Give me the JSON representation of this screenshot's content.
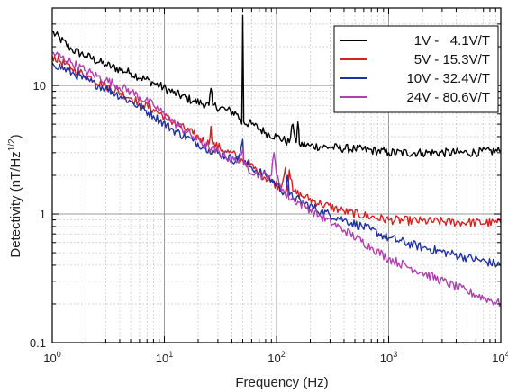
{
  "chart_data": {
    "type": "line",
    "xlabel": "Frequency (Hz)",
    "ylabel_main": "Detectivity (nT/Hz",
    "ylabel_sup": "1/2",
    "ylabel_end": ")",
    "xscale": "log",
    "yscale": "log",
    "xlim": [
      1,
      10000
    ],
    "ylim": [
      0.1,
      40
    ],
    "x_ticks": [
      {
        "value": 1,
        "base": "10",
        "exp": "0"
      },
      {
        "value": 10,
        "base": "10",
        "exp": "1"
      },
      {
        "value": 100,
        "base": "10",
        "exp": "2"
      },
      {
        "value": 1000,
        "base": "10",
        "exp": "3"
      },
      {
        "value": 10000,
        "base": "10",
        "exp": "4"
      }
    ],
    "y_ticks": [
      {
        "value": 0.1,
        "label": "0.1"
      },
      {
        "value": 1,
        "label": "1"
      },
      {
        "value": 10,
        "label": "10"
      }
    ],
    "grid": true,
    "legend_position": "top-right",
    "series": [
      {
        "name": "1V -   4.1V/T",
        "color": "#000000",
        "points": [
          [
            1,
            26
          ],
          [
            1.5,
            19
          ],
          [
            2,
            17
          ],
          [
            3,
            14.5
          ],
          [
            5,
            12.5
          ],
          [
            8,
            10.5
          ],
          [
            12,
            8.8
          ],
          [
            18,
            7.6
          ],
          [
            25,
            7.0
          ],
          [
            26,
            9.5
          ],
          [
            27,
            7.0
          ],
          [
            35,
            6.5
          ],
          [
            45,
            6.0
          ],
          [
            49,
            5.0
          ],
          [
            50,
            35
          ],
          [
            51,
            5.2
          ],
          [
            60,
            5.0
          ],
          [
            80,
            4.3
          ],
          [
            100,
            4.0
          ],
          [
            130,
            3.6
          ],
          [
            140,
            5.0
          ],
          [
            150,
            3.6
          ],
          [
            155,
            5.2
          ],
          [
            160,
            3.5
          ],
          [
            200,
            3.4
          ],
          [
            300,
            3.3
          ],
          [
            500,
            3.2
          ],
          [
            800,
            3.1
          ],
          [
            1000,
            3.0
          ],
          [
            2000,
            3.0
          ],
          [
            5000,
            3.0
          ],
          [
            10000,
            3.1
          ]
        ]
      },
      {
        "name": "5V - 15.3V/T",
        "color": "#d42020",
        "points": [
          [
            1,
            17
          ],
          [
            1.5,
            13.5
          ],
          [
            2,
            12
          ],
          [
            3,
            10
          ],
          [
            5,
            8
          ],
          [
            8,
            6.5
          ],
          [
            12,
            5.2
          ],
          [
            18,
            4.2
          ],
          [
            25,
            3.5
          ],
          [
            26,
            4.8
          ],
          [
            27,
            3.5
          ],
          [
            35,
            3.1
          ],
          [
            45,
            2.8
          ],
          [
            50,
            2.6
          ],
          [
            55,
            2.5
          ],
          [
            70,
            2.1
          ],
          [
            90,
            1.8
          ],
          [
            110,
            1.6
          ],
          [
            120,
            2.3
          ],
          [
            125,
            1.5
          ],
          [
            130,
            2.2
          ],
          [
            140,
            1.5
          ],
          [
            180,
            1.35
          ],
          [
            250,
            1.2
          ],
          [
            400,
            1.05
          ],
          [
            700,
            0.95
          ],
          [
            1000,
            0.9
          ],
          [
            2000,
            0.88
          ],
          [
            5000,
            0.86
          ],
          [
            10000,
            0.85
          ]
        ]
      },
      {
        "name": "10V - 32.4V/T",
        "color": "#2030a0",
        "points": [
          [
            1,
            15
          ],
          [
            1.5,
            12.5
          ],
          [
            2,
            11
          ],
          [
            3,
            9.5
          ],
          [
            5,
            7.5
          ],
          [
            8,
            5.8
          ],
          [
            12,
            4.5
          ],
          [
            18,
            3.7
          ],
          [
            25,
            3.2
          ],
          [
            35,
            2.8
          ],
          [
            45,
            2.6
          ],
          [
            50,
            3.8
          ],
          [
            51,
            2.5
          ],
          [
            60,
            2.3
          ],
          [
            80,
            2.0
          ],
          [
            100,
            1.7
          ],
          [
            120,
            1.45
          ],
          [
            125,
            2.0
          ],
          [
            130,
            1.4
          ],
          [
            180,
            1.2
          ],
          [
            250,
            1.05
          ],
          [
            400,
            0.9
          ],
          [
            700,
            0.75
          ],
          [
            1000,
            0.65
          ],
          [
            2000,
            0.55
          ],
          [
            5000,
            0.46
          ],
          [
            10000,
            0.4
          ]
        ]
      },
      {
        "name": "24V - 80.6V/T",
        "color": "#b040b0",
        "points": [
          [
            1,
            18
          ],
          [
            1.5,
            15
          ],
          [
            2,
            13
          ],
          [
            3,
            11
          ],
          [
            5,
            9
          ],
          [
            8,
            7
          ],
          [
            12,
            5.2
          ],
          [
            18,
            4.0
          ],
          [
            25,
            3.3
          ],
          [
            35,
            2.8
          ],
          [
            45,
            2.55
          ],
          [
            50,
            3.2
          ],
          [
            51,
            2.4
          ],
          [
            70,
            2.0
          ],
          [
            90,
            2.0
          ],
          [
            95,
            3.0
          ],
          [
            100,
            2.0
          ],
          [
            120,
            1.4
          ],
          [
            180,
            1.15
          ],
          [
            250,
            0.95
          ],
          [
            400,
            0.75
          ],
          [
            700,
            0.55
          ],
          [
            1000,
            0.45
          ],
          [
            2000,
            0.35
          ],
          [
            5000,
            0.25
          ],
          [
            10000,
            0.2
          ]
        ]
      }
    ]
  }
}
